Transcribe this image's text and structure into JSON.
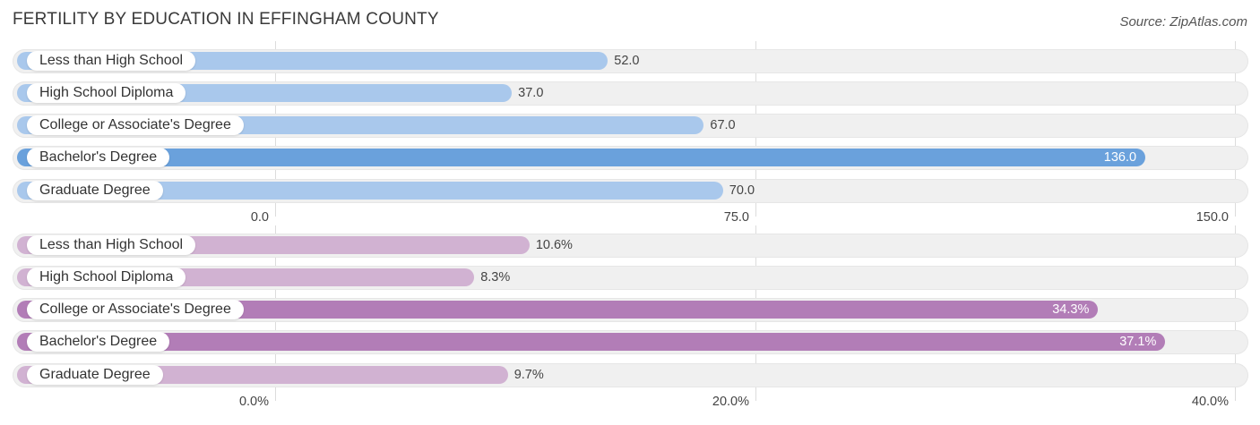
{
  "title": "FERTILITY BY EDUCATION IN EFFINGHAM COUNTY",
  "source": "Source: ZipAtlas.com",
  "chart_data": [
    {
      "type": "bar",
      "orientation": "horizontal",
      "categories": [
        "Less than High School",
        "High School Diploma",
        "College or Associate's Degree",
        "Bachelor's Degree",
        "Graduate Degree"
      ],
      "values": [
        52.0,
        37.0,
        67.0,
        136.0,
        70.0
      ],
      "value_labels": [
        "52.0",
        "37.0",
        "67.0",
        "136.0",
        "70.0"
      ],
      "xlim": [
        0,
        150
      ],
      "ticks": [
        0,
        75,
        150
      ],
      "tick_labels": [
        "0.0",
        "75.0",
        "150.0"
      ],
      "highlight_index": 3,
      "colors": {
        "normal": "#a9c8ec",
        "highlight": "#6aa1dc"
      },
      "grid": true
    },
    {
      "type": "bar",
      "orientation": "horizontal",
      "categories": [
        "Less than High School",
        "High School Diploma",
        "College or Associate's Degree",
        "Bachelor's Degree",
        "Graduate Degree"
      ],
      "values": [
        10.6,
        8.3,
        34.3,
        37.1,
        9.7
      ],
      "value_labels": [
        "10.6%",
        "8.3%",
        "34.3%",
        "37.1%",
        "9.7%"
      ],
      "xlim": [
        0,
        40
      ],
      "ticks": [
        0,
        20,
        40
      ],
      "tick_labels": [
        "0.0%",
        "20.0%",
        "40.0%"
      ],
      "highlight_indices": [
        2,
        3
      ],
      "colors": {
        "normal": "#d1b2d2",
        "highlight": "#b27db7"
      },
      "grid": true
    }
  ]
}
